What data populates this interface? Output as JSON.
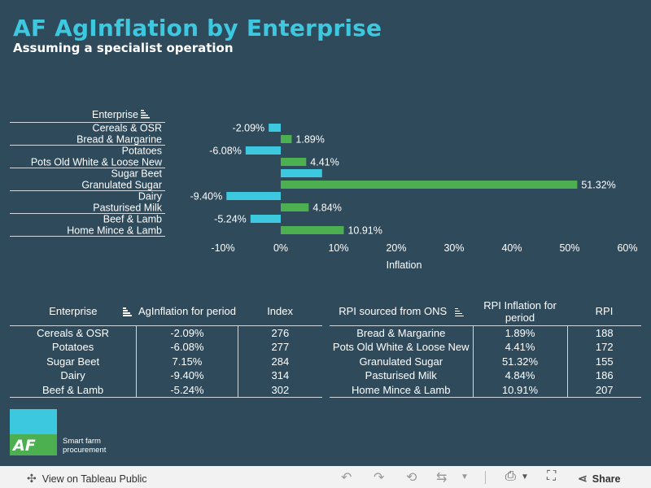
{
  "header": {
    "title": "AF AgInflation by Enterprise",
    "subtitle": "Assuming a specialist operation"
  },
  "chart_data": {
    "type": "bar",
    "orientation": "horizontal",
    "header_label": "Enterprise",
    "categories": [
      "Cereals & OSR",
      "Bread & Margarine",
      "Potatoes",
      "Pots Old White & Loose New",
      "Sugar Beet",
      "Granulated Sugar",
      "Dairy",
      "Pasturised Milk",
      "Beef & Lamb",
      "Home Mince & Lamb"
    ],
    "values": [
      -2.09,
      1.89,
      -6.08,
      4.41,
      7.15,
      51.32,
      -9.4,
      4.84,
      -5.24,
      10.91
    ],
    "data_labels": [
      "-2.09%",
      "1.89%",
      "-6.08%",
      "4.41%",
      "",
      "51.32%",
      "-9.40%",
      "4.84%",
      "-5.24%",
      "10.91%"
    ],
    "series_colors": [
      "#3cc9e0",
      "#4caf50",
      "#3cc9e0",
      "#4caf50",
      "#3cc9e0",
      "#4caf50",
      "#3cc9e0",
      "#4caf50",
      "#3cc9e0",
      "#4caf50"
    ],
    "xlabel": "Inflation",
    "xlim": [
      -10,
      60
    ],
    "xticks": [
      "-10%",
      "0%",
      "10%",
      "20%",
      "30%",
      "40%",
      "50%",
      "60%"
    ],
    "grid": false
  },
  "ag_table": {
    "headers": [
      "Enterprise",
      "AgInflation for period",
      "Index"
    ],
    "rows": [
      [
        "Cereals & OSR",
        "-2.09%",
        "276"
      ],
      [
        "Potatoes",
        "-6.08%",
        "277"
      ],
      [
        "Sugar Beet",
        "7.15%",
        "284"
      ],
      [
        "Dairy",
        "-9.40%",
        "314"
      ],
      [
        "Beef & Lamb",
        "-5.24%",
        "302"
      ]
    ]
  },
  "rpi_table": {
    "headers": [
      "RPI sourced from ONS",
      "RPI Inflation for period",
      "RPI"
    ],
    "rows": [
      [
        "Bread & Margarine",
        "1.89%",
        "188"
      ],
      [
        "Pots Old White & Loose New",
        "4.41%",
        "172"
      ],
      [
        "Granulated Sugar",
        "51.32%",
        "155"
      ],
      [
        "Pasturised Milk",
        "4.84%",
        "186"
      ],
      [
        "Home Mince & Lamb",
        "10.91%",
        "207"
      ]
    ]
  },
  "logo": {
    "mark": "AF",
    "tagline": "Smart farm procurement"
  },
  "footer": {
    "view_label": "View on Tableau Public",
    "share_label": "Share"
  },
  "colors": {
    "background": "#2e4a5b",
    "accent": "#3cc9e0",
    "positive": "#4caf50"
  }
}
